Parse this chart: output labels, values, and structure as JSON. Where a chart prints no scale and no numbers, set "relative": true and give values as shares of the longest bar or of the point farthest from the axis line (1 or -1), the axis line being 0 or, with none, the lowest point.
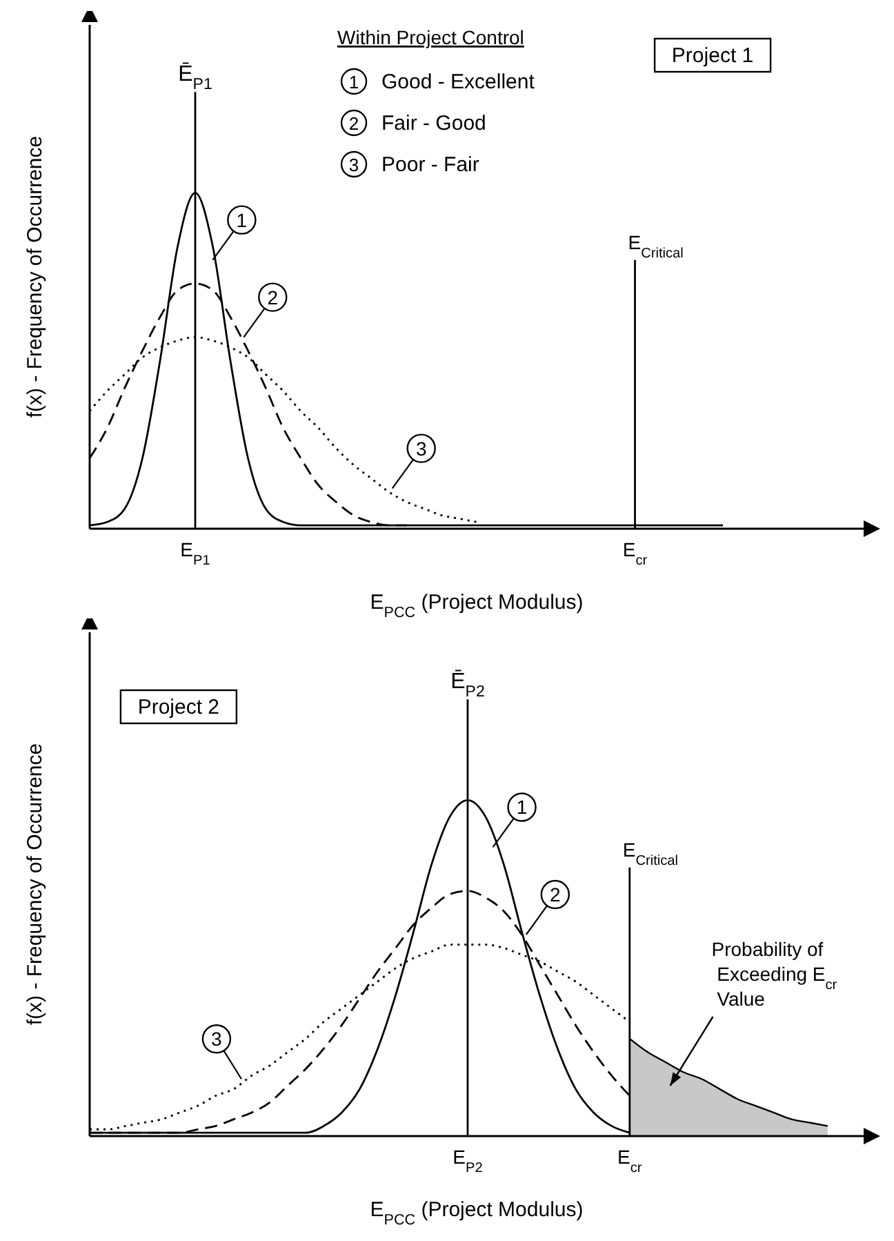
{
  "chart_data": [
    {
      "type": "line",
      "title": "Project 1",
      "xlabel": "E$_{PCC}$ (Project Modulus)",
      "ylabel": "f(x) - Frequency of Occurrence",
      "legend_title": "Within Project Control",
      "relative": true,
      "grid": false,
      "legend": "top",
      "marker": "none",
      "categories": [
        null,
        null,
        null,
        null,
        null,
        null,
        "E$_{P1}$",
        null,
        null,
        null,
        null,
        null,
        null,
        null,
        null,
        null,
        null,
        null,
        null,
        null,
        null,
        null,
        null,
        null,
        null,
        null,
        null,
        null,
        null,
        null,
        null,
        "E$_{cr}$",
        null,
        null,
        null,
        null,
        null,
        null,
        null,
        null,
        null,
        null,
        null,
        null,
        null
      ],
      "ref_lines": [
        {
          "axis": "x",
          "value": "E$_{P1}$",
          "label": "Ē$_{P1}$"
        },
        {
          "axis": "x",
          "value": "E$_{cr}$",
          "label": "E$_{Critical}$"
        }
      ],
      "annotations": [
        "1",
        "2",
        "3"
      ],
      "series": [
        {
          "name": "Good - Excellent",
          "color": "#000000",
          "line_style": "solid",
          "values": [
            0.01,
            0.02,
            0.06,
            0.21,
            0.5,
            0.84,
            1,
            0.84,
            0.5,
            0.21,
            0.06,
            0.02,
            0.01,
            0.01,
            0.01,
            0.01,
            0.01,
            0.01,
            0.01,
            0.01,
            0.01,
            0.01,
            0.01,
            0.01,
            0.01,
            0.01,
            0.01,
            0.01,
            0.01,
            0.01,
            0.01,
            0.01,
            0.01,
            0.01,
            0.01,
            0.01,
            0.01,
            null,
            null,
            null,
            null,
            null,
            null,
            null,
            null
          ]
        },
        {
          "name": "Fair - Good",
          "color": "#000000",
          "line_style": "dashed",
          "values": [
            0.21,
            0.3,
            0.42,
            0.53,
            0.63,
            0.71,
            0.73,
            0.71,
            0.63,
            0.53,
            0.42,
            0.3,
            0.21,
            0.13,
            0.08,
            0.04,
            0.02,
            0.01,
            0.01,
            null,
            null,
            null,
            null,
            null,
            null,
            null,
            null,
            null,
            null,
            null,
            null,
            null,
            null,
            null,
            null,
            null,
            null,
            null,
            null,
            null,
            null,
            null,
            null,
            null,
            null
          ]
        },
        {
          "name": "Poor - Fair",
          "color": "#000000",
          "line_style": "dotted",
          "values": [
            0.35,
            0.41,
            0.46,
            0.51,
            0.54,
            0.56,
            0.57,
            0.56,
            0.54,
            0.51,
            0.46,
            0.41,
            0.35,
            0.3,
            0.24,
            0.19,
            0.15,
            0.11,
            0.08,
            0.06,
            0.04,
            0.03,
            0.02,
            null,
            null,
            null,
            null,
            null,
            null,
            null,
            null,
            null,
            null,
            null,
            null,
            null,
            null,
            null,
            null,
            null,
            null,
            null,
            null,
            null,
            null
          ]
        }
      ]
    },
    {
      "type": "line",
      "title": "Project 2",
      "xlabel": "E$_{PCC}$ (Project Modulus)",
      "ylabel": "f(x) - Frequency of Occurrence",
      "relative": true,
      "grid": false,
      "marker": "none",
      "categories": [
        null,
        null,
        null,
        null,
        null,
        null,
        null,
        null,
        null,
        null,
        null,
        null,
        null,
        null,
        null,
        null,
        null,
        null,
        null,
        null,
        null,
        "E$_{P2}$",
        null,
        null,
        null,
        null,
        null,
        null,
        null,
        null,
        "E$_{cr}$",
        null,
        null,
        null,
        null,
        null,
        null,
        null,
        null,
        null,
        null,
        null,
        null,
        null
      ],
      "ref_lines": [
        {
          "axis": "x",
          "value": "E$_{P2}$",
          "label": "Ē$_{P2}$"
        },
        {
          "axis": "x",
          "value": "E$_{cr}$",
          "label": "E$_{Critical}$"
        }
      ],
      "annotations": [
        "1",
        "2",
        "3",
        "Probability of Exceeding E$_{cr}$ Value"
      ],
      "series": [
        {
          "type": "area",
          "color": "#c8c8c8",
          "values": [
            null,
            null,
            null,
            null,
            null,
            null,
            null,
            null,
            null,
            null,
            null,
            null,
            null,
            null,
            null,
            null,
            null,
            null,
            null,
            null,
            null,
            null,
            null,
            null,
            null,
            null,
            null,
            null,
            null,
            null,
            0.29,
            0.25,
            0.22,
            0.19,
            0.17,
            0.14,
            0.11,
            0.09,
            0.07,
            0.05,
            0.04,
            0.03,
            null,
            null
          ]
        },
        {
          "color": "#000000",
          "line_style": "solid",
          "values": [
            0.01,
            0.01,
            0.01,
            0.01,
            0.01,
            0.01,
            0.01,
            0.01,
            0.01,
            0.01,
            0.01,
            0.01,
            0.01,
            0.03,
            0.07,
            0.14,
            0.26,
            0.42,
            0.61,
            0.81,
            0.95,
            1,
            0.95,
            0.81,
            0.61,
            0.42,
            0.26,
            0.14,
            0.07,
            0.03,
            0.01,
            null,
            null,
            null,
            null,
            null,
            null,
            null,
            null,
            null,
            null,
            null,
            null,
            null
          ]
        },
        {
          "color": "#000000",
          "line_style": "dashed",
          "values": [
            0.01,
            0.01,
            0.01,
            0.01,
            0.01,
            0.01,
            0.02,
            0.03,
            0.05,
            0.07,
            0.1,
            0.15,
            0.2,
            0.26,
            0.33,
            0.41,
            0.49,
            0.56,
            0.63,
            0.68,
            0.72,
            0.73,
            0.71,
            0.67,
            0.6,
            0.51,
            0.42,
            0.33,
            0.25,
            0.18,
            0.12,
            null,
            null,
            null,
            null,
            null,
            null,
            null,
            null,
            null,
            null,
            null,
            null,
            null
          ]
        },
        {
          "color": "#000000",
          "line_style": "dotted",
          "values": [
            0.02,
            0.02,
            0.03,
            0.04,
            0.05,
            0.07,
            0.09,
            0.12,
            0.14,
            0.18,
            0.21,
            0.25,
            0.29,
            0.34,
            0.38,
            0.42,
            0.46,
            0.5,
            0.53,
            0.55,
            0.57,
            0.57,
            0.57,
            0.56,
            0.54,
            0.52,
            0.49,
            0.46,
            0.42,
            0.38,
            0.34,
            null,
            null,
            null,
            null,
            null,
            null,
            null,
            null,
            null,
            null,
            null,
            null,
            null
          ]
        }
      ]
    }
  ]
}
